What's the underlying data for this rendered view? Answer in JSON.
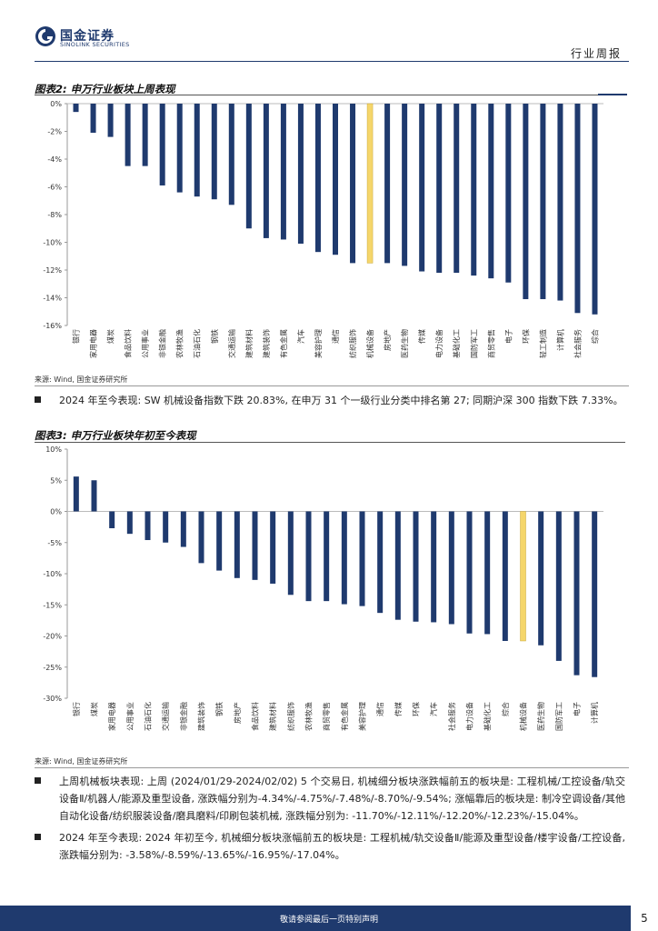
{
  "header": {
    "logo_cn": "国金证券",
    "logo_en": "SINOLINK SECURITIES",
    "report_type": "行业周报"
  },
  "figure2": {
    "title": "图表2: 申万行业板块上周表现",
    "source": "来源: Wind, 国金证券研究所"
  },
  "figure3": {
    "title": "图表3: 申万行业板块年初至今表现",
    "source": "来源: Wind, 国金证券研究所"
  },
  "paragraphs": {
    "ytd_industry": "2024 年至今表现: SW 机械设备指数下跌 20.83%, 在申万 31 个一级行业分类中排名第 27; 同期沪深 300 指数下跌 7.33%。",
    "last_week_sub": "上周机械板块表现: 上周 (2024/01/29-2024/02/02) 5 个交易日, 机械细分板块涨跌幅前五的板块是: 工程机械/工控设备/轨交设备Ⅱ/机器人/能源及重型设备, 涨跌幅分别为-4.34%/-4.75%/-7.48%/-8.70%/-9.54%; 涨幅靠后的板块是: 制冷空调设备/其他自动化设备/纺织服装设备/磨具磨料/印刷包装机械, 涨跌幅分别为: -11.70%/-12.11%/-12.20%/-12.23%/-15.04%。",
    "ytd_sub": "2024 年至今表现: 2024 年初至今, 机械细分板块涨幅前五的板块是: 工程机械/轨交设备Ⅱ/能源及重型设备/楼宇设备/工控设备, 涨跌幅分别为: -3.58%/-8.59%/-13.65%/-16.95%/-17.04%。"
  },
  "footer": {
    "disclaimer": "敬请参阅最后一页特别声明",
    "page_number": "5"
  },
  "colors": {
    "bar": "#1f3a6e",
    "highlight": "#f5d66b",
    "brand": "#1f3a6e"
  },
  "chart_data": [
    {
      "type": "bar",
      "title": "图表2: 申万行业板块上周表现",
      "highlight": "机械设备",
      "ylim": [
        -16,
        0
      ],
      "yticks": [
        0,
        -2,
        -4,
        -6,
        -8,
        -10,
        -12,
        -14,
        -16
      ],
      "tick_suffix": "%",
      "categories": [
        "银行",
        "家用电器",
        "煤炭",
        "食品饮料",
        "公用事业",
        "非银金融",
        "农林牧渔",
        "石油石化",
        "钢铁",
        "交通运输",
        "建筑材料",
        "建筑装饰",
        "有色金属",
        "汽车",
        "美容护理",
        "通信",
        "纺织服饰",
        "机械设备",
        "房地产",
        "医药生物",
        "传媒",
        "电力设备",
        "基础化工",
        "国防军工",
        "商贸零售",
        "电子",
        "环保",
        "轻工制造",
        "计算机",
        "社会服务",
        "综合"
      ],
      "values": [
        -0.6,
        -2.1,
        -2.4,
        -4.5,
        -4.5,
        -5.9,
        -6.4,
        -6.7,
        -6.9,
        -7.3,
        -9.0,
        -9.7,
        -9.8,
        -10.1,
        -10.7,
        -10.9,
        -11.5,
        -11.5,
        -11.5,
        -11.7,
        -12.1,
        -12.2,
        -12.2,
        -12.4,
        -12.6,
        -12.9,
        -14.1,
        -14.1,
        -14.2,
        -15.1,
        -15.2
      ]
    },
    {
      "type": "bar",
      "title": "图表3: 申万行业板块年初至今表现",
      "highlight": "机械设备",
      "ylim": [
        -30,
        10
      ],
      "yticks": [
        10,
        5,
        0,
        -5,
        -10,
        -15,
        -20,
        -25,
        -30
      ],
      "tick_suffix": "%",
      "categories": [
        "银行",
        "煤炭",
        "家用电器",
        "公用事业",
        "石油石化",
        "交通运输",
        "非银金融",
        "建筑装饰",
        "钢铁",
        "房地产",
        "食品饮料",
        "建筑材料",
        "纺织服饰",
        "农林牧渔",
        "商贸零售",
        "有色金属",
        "美容护理",
        "通信",
        "传媒",
        "环保",
        "汽车",
        "社会服务",
        "电力设备",
        "基础化工",
        "综合",
        "机械设备",
        "医药生物",
        "国防军工",
        "电子",
        "计算机"
      ],
      "values": [
        5.6,
        5.0,
        -2.7,
        -3.6,
        -4.6,
        -5.0,
        -5.7,
        -8.3,
        -9.5,
        -10.7,
        -11.0,
        -11.6,
        -13.4,
        -14.4,
        -14.4,
        -14.9,
        -15.2,
        -16.3,
        -17.4,
        -17.7,
        -17.8,
        -18.1,
        -19.6,
        -19.7,
        -20.8,
        -20.8,
        -21.5,
        -24.0,
        -26.3,
        -26.6
      ]
    }
  ]
}
